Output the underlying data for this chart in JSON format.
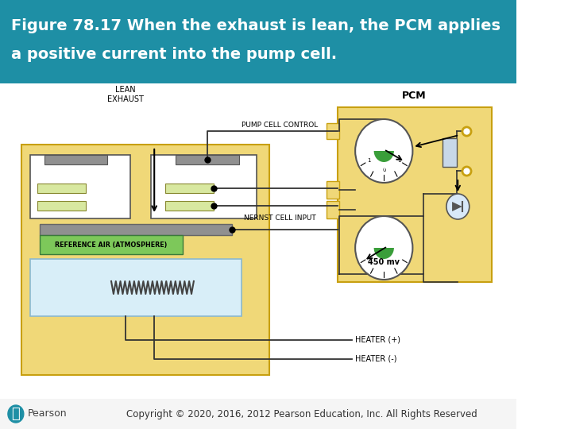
{
  "title_line1": "Figure 78.17 When the exhaust is lean, the PCM applies",
  "title_line2": "a positive current into the pump cell.",
  "title_bg_color": "#1e8fa5",
  "title_text_color": "#ffffff",
  "body_bg_color": "#ffffff",
  "footer_text": "Copyright © 2020, 2016, 2012 Pearson Education, Inc. All Rights Reserved",
  "footer_text_color": "#333333",
  "pearson_color": "#1e8fa5",
  "sensor_bg": "#f0d878",
  "pcm_bg": "#f0d878",
  "ref_air_color": "#7dc85a",
  "heater_bg": "#d8eef8",
  "gauge_green": "#3a9e3a",
  "cell_gray": "#909090",
  "cell_light_green": "#d8e8a0",
  "wire_color": "#333333",
  "title_fontsize": 14,
  "footer_fontsize": 8.5
}
